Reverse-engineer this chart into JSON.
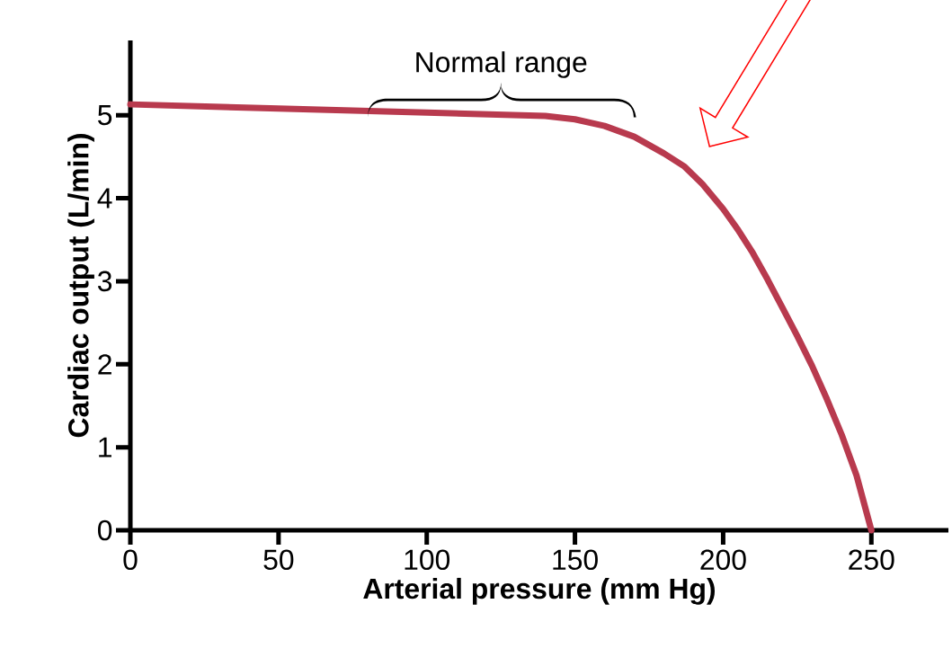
{
  "chart_data": {
    "type": "line",
    "x": [
      0,
      50,
      100,
      140,
      150,
      160,
      170,
      180,
      187,
      193,
      200,
      205,
      210,
      215,
      220,
      225,
      230,
      235,
      240,
      245,
      250
    ],
    "series": [
      {
        "color": "#b83a4e",
        "values": [
          5.13,
          5.08,
          5.03,
          4.99,
          4.95,
          4.87,
          4.74,
          4.54,
          4.38,
          4.17,
          3.87,
          3.62,
          3.34,
          3.02,
          2.68,
          2.34,
          1.98,
          1.58,
          1.15,
          0.66,
          0
        ]
      }
    ],
    "xlim": [
      0,
      276
    ],
    "ylim": [
      0,
      5.9
    ],
    "xticks": [
      0,
      50,
      100,
      150,
      200,
      250
    ],
    "yticks": [
      0,
      1,
      2,
      3,
      4,
      5
    ],
    "xlabel": "Arterial pressure (mm Hg)",
    "ylabel": "Cardiac output (L/min)",
    "annotations": [
      "Normal range"
    ],
    "grid": false,
    "line_style": "solid"
  }
}
